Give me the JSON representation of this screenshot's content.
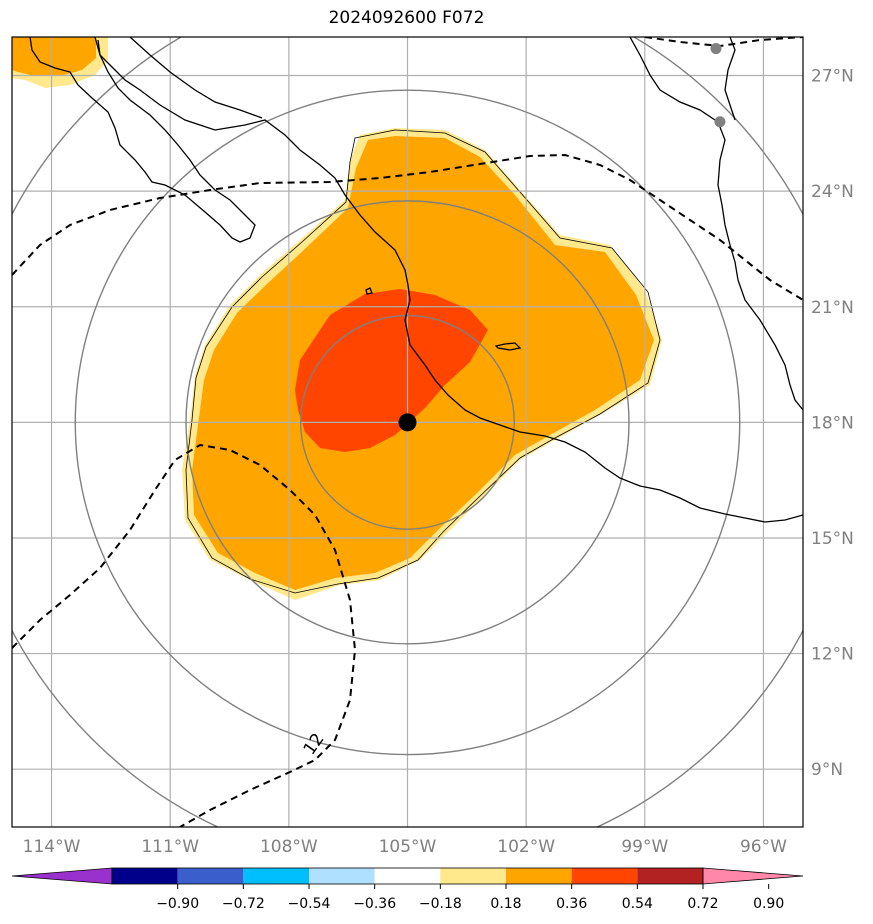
{
  "title": "2024092600 F072",
  "map": {
    "lon_range": [
      -115.0,
      -95.0
    ],
    "lat_range": [
      7.5,
      28.0
    ],
    "lon_ticks": [
      {
        "value": -114,
        "label": "114°W"
      },
      {
        "value": -111,
        "label": "111°W"
      },
      {
        "value": -108,
        "label": "108°W"
      },
      {
        "value": -105,
        "label": "105°W"
      },
      {
        "value": -102,
        "label": "102°W"
      },
      {
        "value": -99,
        "label": "99°W"
      },
      {
        "value": -96,
        "label": "96°W"
      }
    ],
    "lat_ticks": [
      {
        "value": 27,
        "label": "27°N"
      },
      {
        "value": 24,
        "label": "24°N"
      },
      {
        "value": 21,
        "label": "21°N"
      },
      {
        "value": 18,
        "label": "18°N"
      },
      {
        "value": 15,
        "label": "15°N"
      },
      {
        "value": 12,
        "label": "12°N"
      },
      {
        "value": 9,
        "label": "9°N"
      }
    ],
    "storm_center": {
      "lon": -105.0,
      "lat": 18.0
    },
    "range_rings_deg": [
      2.7,
      5.6,
      8.4,
      11.3
    ],
    "contour_label": "12",
    "gray_dots": [
      {
        "lon": -97.2,
        "lat": 27.7
      },
      {
        "lon": -97.1,
        "lat": 25.8
      }
    ],
    "colors": {
      "grid": "#b0b0b0",
      "ring": "#808080",
      "fill_low": "#ffe98c",
      "fill_mid": "#ffa500",
      "fill_high": "#ff4500",
      "storm": "#000000",
      "dot": "#808080"
    }
  },
  "colorbar": {
    "colors": [
      "#9932cc",
      "#00008b",
      "#3a5fcd",
      "#00bfff",
      "#b0e0ff",
      "#ffffff",
      "#ffe98c",
      "#ffa500",
      "#ff4500",
      "#b22222",
      "#ff88aa"
    ],
    "ticks": [
      "−0.90",
      "−0.72",
      "−0.54",
      "−0.36",
      "−0.18",
      "0.18",
      "0.36",
      "0.54",
      "0.72",
      "0.90"
    ]
  }
}
